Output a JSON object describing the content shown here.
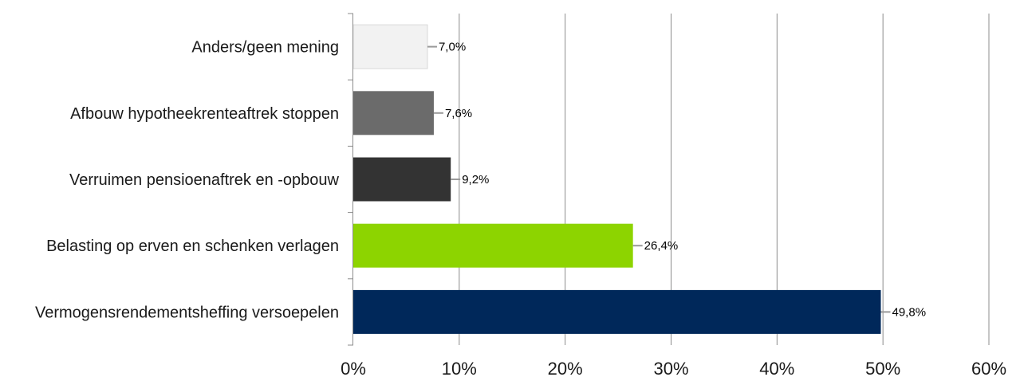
{
  "chart_data": {
    "type": "bar",
    "orientation": "horizontal",
    "categories": [
      "Anders/geen mening",
      "Afbouw hypotheekrenteaftrek stoppen",
      "Verruimen pensioenaftrek en -opbouw",
      "Belasting op erven en schenken verlagen",
      "Vermogensrendementsheffing versoepelen"
    ],
    "values": [
      7.0,
      7.6,
      9.2,
      26.4,
      49.8
    ],
    "data_labels": [
      "7,0%",
      "7,6%",
      "9,2%",
      "26,4%",
      "49,8%"
    ],
    "colors": [
      "#f2f2f2",
      "#6b6b6b",
      "#333333",
      "#8dd400",
      "#00285a"
    ],
    "xlim": [
      0,
      60
    ],
    "xticks": [
      0,
      10,
      20,
      30,
      40,
      50,
      60
    ],
    "xtick_labels": [
      "0%",
      "10%",
      "20%",
      "30%",
      "40%",
      "50%",
      "60%"
    ],
    "grid": true,
    "legend": "none"
  }
}
